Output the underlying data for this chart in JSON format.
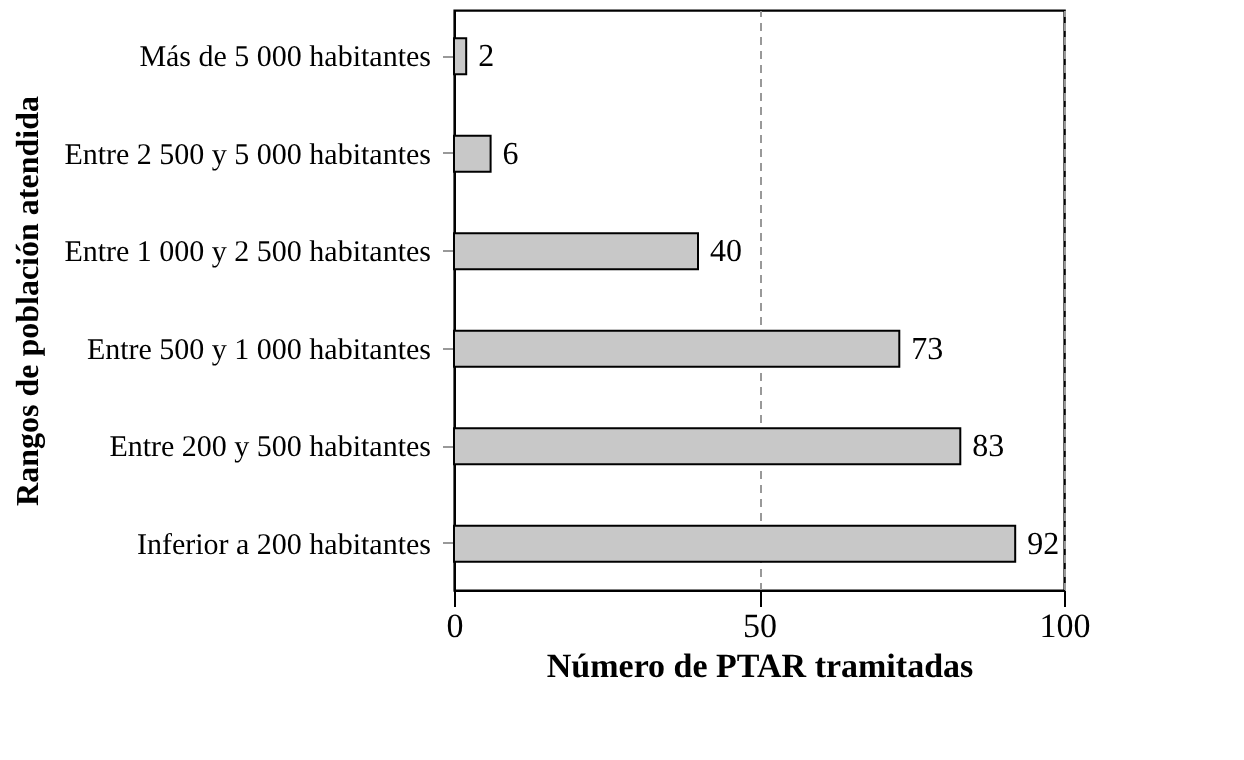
{
  "chart_data": {
    "type": "bar",
    "orientation": "horizontal",
    "xlabel": "Número de PTAR tramitadas",
    "ylabel": "Rangos de población atendida",
    "categories": [
      "Más de 5 000 habitantes",
      "Entre 2 500 y 5 000 habitantes",
      "Entre 1 000 y 2 500 habitantes",
      "Entre 500 y 1 000 habitantes",
      "Entre 200 y 500 habitantes",
      "Inferior a 200 habitantes"
    ],
    "values": [
      2,
      6,
      40,
      73,
      83,
      92
    ],
    "color": "#c8c8c8",
    "xlim": [
      0,
      100
    ],
    "xticks": [
      0,
      50,
      100
    ],
    "grid": "x",
    "data_labels": true
  }
}
